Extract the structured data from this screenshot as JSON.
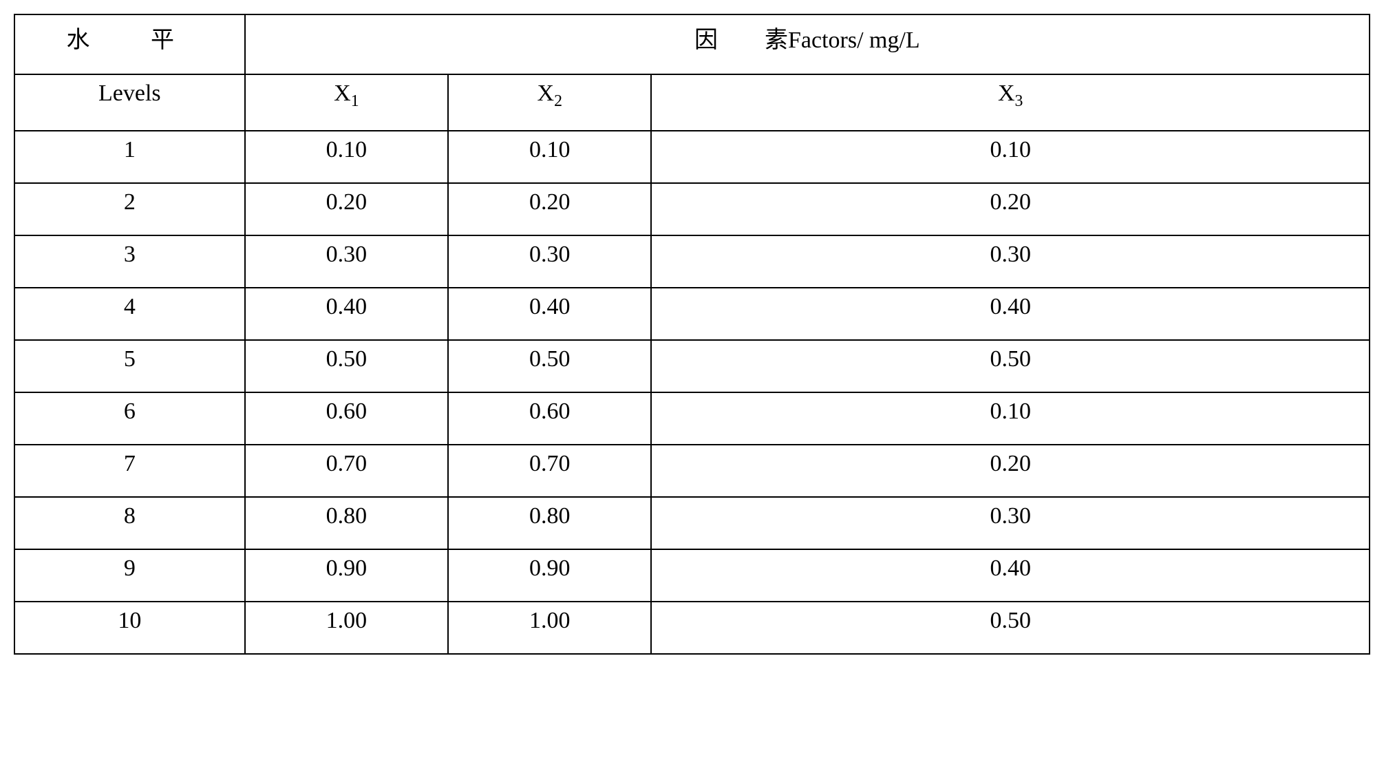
{
  "table": {
    "type": "table",
    "background_color": "#ffffff",
    "border_color": "#000000",
    "border_width": 2,
    "text_color": "#000000",
    "font_family": "SimSun serif",
    "header_fontsize": 34,
    "cell_fontsize": 34,
    "column_widths_pct": [
      17,
      15,
      15,
      53
    ],
    "header_row1": {
      "levels_label_cn": "水　平",
      "factors_label_cn": "因　　素",
      "factors_label_en": "Factors/ mg/L"
    },
    "header_row2": {
      "levels_label_en": "Levels",
      "col1_base": "X",
      "col1_sub": "1",
      "col2_base": "X",
      "col2_sub": "2",
      "col3_base": "X",
      "col3_sub": "3"
    },
    "columns": [
      "Levels",
      "X1",
      "X2",
      "X3"
    ],
    "rows": [
      {
        "level": "1",
        "x1": "0.10",
        "x2": "0.10",
        "x3": "0.10"
      },
      {
        "level": "2",
        "x1": "0.20",
        "x2": "0.20",
        "x3": "0.20"
      },
      {
        "level": "3",
        "x1": "0.30",
        "x2": "0.30",
        "x3": "0.30"
      },
      {
        "level": "4",
        "x1": "0.40",
        "x2": "0.40",
        "x3": "0.40"
      },
      {
        "level": "5",
        "x1": "0.50",
        "x2": "0.50",
        "x3": "0.50"
      },
      {
        "level": "6",
        "x1": "0.60",
        "x2": "0.60",
        "x3": "0.10"
      },
      {
        "level": "7",
        "x1": "0.70",
        "x2": "0.70",
        "x3": "0.20"
      },
      {
        "level": "8",
        "x1": "0.80",
        "x2": "0.80",
        "x3": "0.30"
      },
      {
        "level": "9",
        "x1": "0.90",
        "x2": "0.90",
        "x3": "0.40"
      },
      {
        "level": "10",
        "x1": "1.00",
        "x2": "1.00",
        "x3": "0.50"
      }
    ]
  }
}
